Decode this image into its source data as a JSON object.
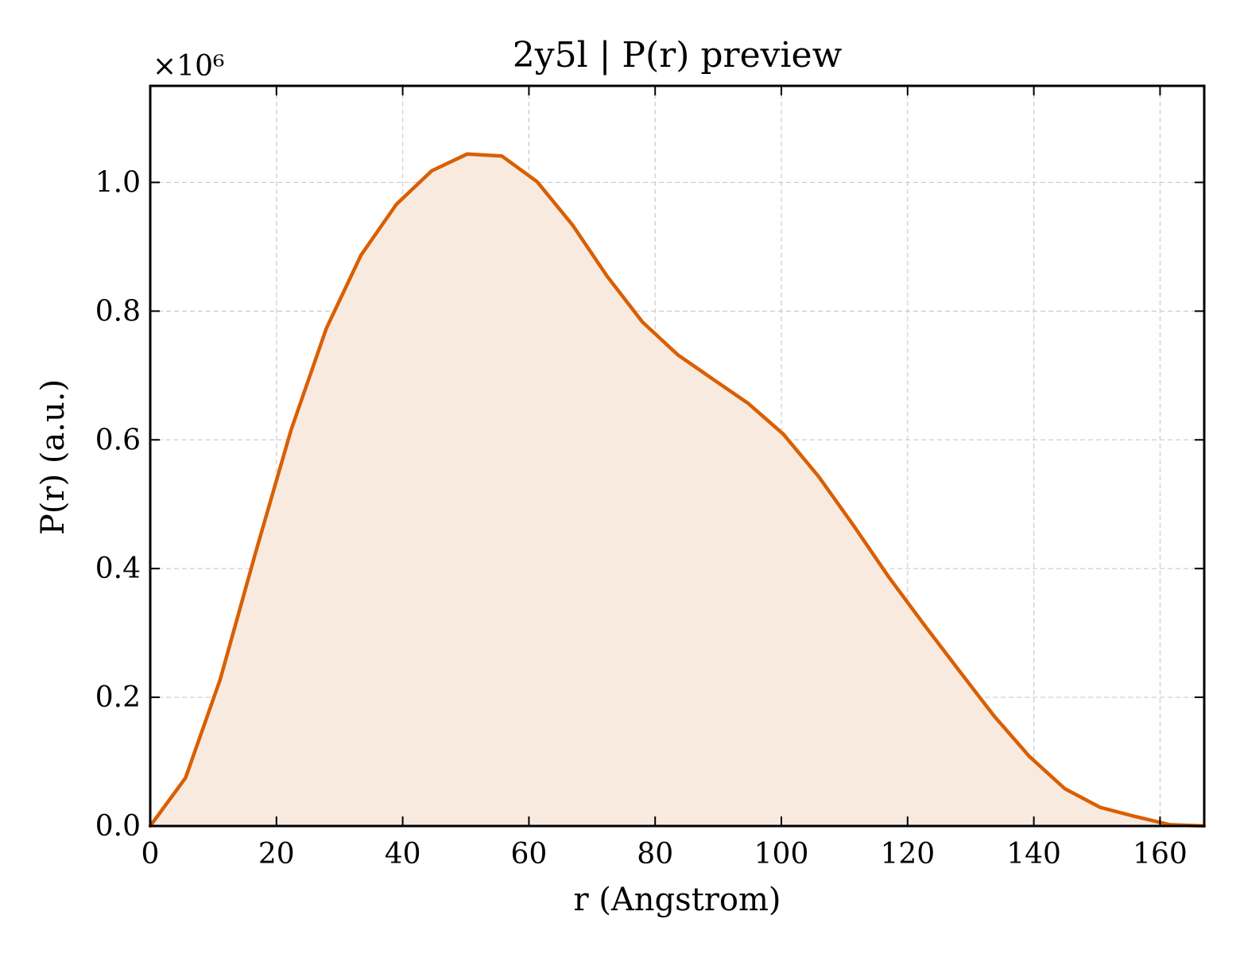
{
  "chart_data": {
    "type": "area",
    "title": "2y5l | P(r) preview",
    "xlabel": "r (Angstrom)",
    "ylabel": "P(r) (a.u.)",
    "y_multiplier": "×10⁶",
    "xlim": [
      0,
      167
    ],
    "ylim": [
      0,
      1.15
    ],
    "xticks": [
      0,
      20,
      40,
      60,
      80,
      100,
      120,
      140,
      160
    ],
    "xtick_labels": [
      "0",
      "20",
      "40",
      "60",
      "80",
      "100",
      "120",
      "140",
      "160"
    ],
    "yticks": [
      0.0,
      0.2,
      0.4,
      0.6,
      0.8,
      1.0
    ],
    "ytick_labels": [
      "0.0",
      "0.2",
      "0.4",
      "0.6",
      "0.8",
      "1.0"
    ],
    "grid": true,
    "line_color": "#d95f02",
    "fill_color": "#f9eae0",
    "series": [
      {
        "x": [
          0,
          5.6,
          11.1,
          16.7,
          22.3,
          27.9,
          33.4,
          39.0,
          44.6,
          50.2,
          55.7,
          61.3,
          66.9,
          72.4,
          78.0,
          83.6,
          89.2,
          94.7,
          100.3,
          105.9,
          111.5,
          117.0,
          122.6,
          128.2,
          133.7,
          139.3,
          144.9,
          150.5,
          156.0,
          161.6,
          167.0
        ],
        "y": [
          0.0,
          0.075,
          0.228,
          0.425,
          0.615,
          0.773,
          0.887,
          0.966,
          1.018,
          1.044,
          1.041,
          1.001,
          0.934,
          0.854,
          0.783,
          0.732,
          0.694,
          0.657,
          0.609,
          0.543,
          0.466,
          0.387,
          0.313,
          0.241,
          0.171,
          0.108,
          0.058,
          0.029,
          0.015,
          0.002,
          0.0
        ]
      }
    ]
  }
}
